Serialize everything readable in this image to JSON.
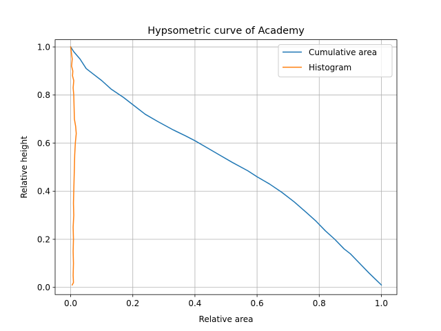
{
  "chart_data": {
    "type": "line",
    "title": "Hypsometric curve of Academy",
    "xlabel": "Relative area",
    "ylabel": "Relative height",
    "xlim": [
      -0.05,
      1.05
    ],
    "ylim": [
      -0.03,
      1.03
    ],
    "xticks": [
      0.0,
      0.2,
      0.4,
      0.6,
      0.8,
      1.0
    ],
    "xtick_labels": [
      "0.0",
      "0.2",
      "0.4",
      "0.6",
      "0.8",
      "1.0"
    ],
    "yticks": [
      0.0,
      0.2,
      0.4,
      0.6,
      0.8,
      1.0
    ],
    "ytick_labels": [
      "0.0",
      "0.2",
      "0.4",
      "0.6",
      "0.8",
      "1.0"
    ],
    "grid": true,
    "legend_position": "top-right",
    "series": [
      {
        "name": "Cumulative area",
        "color": "#1f77b4",
        "points": [
          [
            0.0,
            1.0
          ],
          [
            0.01,
            0.98
          ],
          [
            0.03,
            0.95
          ],
          [
            0.05,
            0.91
          ],
          [
            0.07,
            0.89
          ],
          [
            0.1,
            0.86
          ],
          [
            0.13,
            0.825
          ],
          [
            0.17,
            0.79
          ],
          [
            0.2,
            0.76
          ],
          [
            0.24,
            0.72
          ],
          [
            0.28,
            0.69
          ],
          [
            0.33,
            0.655
          ],
          [
            0.37,
            0.63
          ],
          [
            0.4,
            0.61
          ],
          [
            0.44,
            0.58
          ],
          [
            0.48,
            0.55
          ],
          [
            0.52,
            0.52
          ],
          [
            0.57,
            0.485
          ],
          [
            0.6,
            0.46
          ],
          [
            0.64,
            0.43
          ],
          [
            0.68,
            0.395
          ],
          [
            0.72,
            0.355
          ],
          [
            0.76,
            0.31
          ],
          [
            0.79,
            0.275
          ],
          [
            0.82,
            0.235
          ],
          [
            0.85,
            0.2
          ],
          [
            0.88,
            0.16
          ],
          [
            0.9,
            0.14
          ],
          [
            0.93,
            0.1
          ],
          [
            0.96,
            0.06
          ],
          [
            0.98,
            0.035
          ],
          [
            1.0,
            0.01
          ]
        ]
      },
      {
        "name": "Histogram",
        "color": "#ff7f0e",
        "points": [
          [
            0.0,
            1.0
          ],
          [
            0.003,
            0.97
          ],
          [
            0.005,
            0.95
          ],
          [
            0.003,
            0.92
          ],
          [
            0.007,
            0.9
          ],
          [
            0.006,
            0.88
          ],
          [
            0.01,
            0.86
          ],
          [
            0.008,
            0.83
          ],
          [
            0.01,
            0.8
          ],
          [
            0.011,
            0.75
          ],
          [
            0.012,
            0.7
          ],
          [
            0.016,
            0.67
          ],
          [
            0.018,
            0.64
          ],
          [
            0.015,
            0.6
          ],
          [
            0.013,
            0.55
          ],
          [
            0.012,
            0.5
          ],
          [
            0.011,
            0.45
          ],
          [
            0.01,
            0.4
          ],
          [
            0.009,
            0.35
          ],
          [
            0.01,
            0.3
          ],
          [
            0.008,
            0.25
          ],
          [
            0.009,
            0.2
          ],
          [
            0.008,
            0.15
          ],
          [
            0.009,
            0.1
          ],
          [
            0.008,
            0.05
          ],
          [
            0.009,
            0.02
          ],
          [
            0.005,
            0.01
          ]
        ]
      }
    ]
  }
}
